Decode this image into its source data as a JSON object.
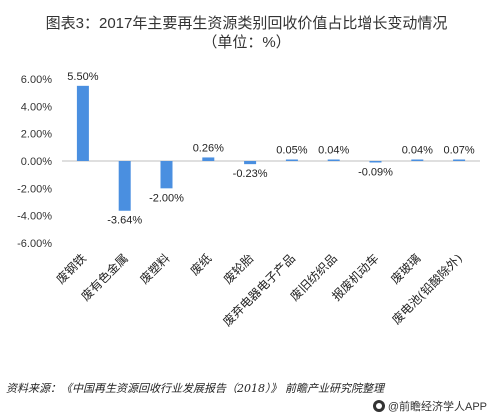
{
  "title_line1": "图表3：2017年主要再生资源类别回收价值占比增长变动情况",
  "title_line2": "（单位：%）",
  "chart_data": {
    "type": "bar",
    "categories": [
      "废钢铁",
      "废有色金属",
      "废塑料",
      "废纸",
      "废轮胎",
      "废弃电器电子产品",
      "废旧纺织品",
      "报废机动车",
      "废玻璃",
      "废电池(铅酸除外)"
    ],
    "values": [
      5.5,
      -3.64,
      -2.0,
      0.26,
      -0.23,
      0.05,
      0.04,
      -0.09,
      0.04,
      0.07
    ],
    "value_labels": [
      "5.50%",
      "-3.64%",
      "-2.00%",
      "0.26%",
      "-0.23%",
      "0.05%",
      "0.04%",
      "-0.09%",
      "0.04%",
      "0.07%"
    ],
    "yticks": [
      6,
      4,
      2,
      0,
      -2,
      -4,
      -6
    ],
    "ytick_labels": [
      "6.00%",
      "4.00%",
      "2.00%",
      "0.00%",
      "-2.00%",
      "-4.00%",
      "-6.00%"
    ],
    "ylim": [
      -6,
      6
    ],
    "bar_color": "#4a8fe0",
    "grid": false
  },
  "source_text": "资料来源：《中国再生资源回收行业发展报告（2018）》  前瞻产业研究院整理",
  "brand_text": "@前瞻经济学人APP"
}
